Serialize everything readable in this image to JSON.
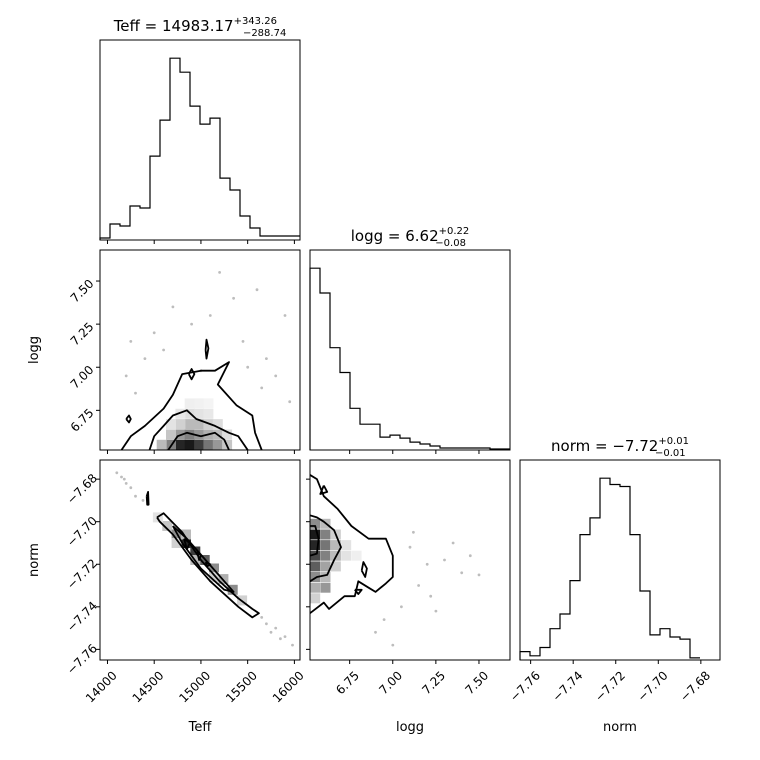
{
  "chart_data": {
    "type": "corner",
    "params": [
      {
        "name": "Teff",
        "title": {
          "label": "Teff",
          "value": "14983.17",
          "plus": "+343.26",
          "minus": "−288.74"
        },
        "range": [
          13920,
          16060
        ],
        "ticks": [
          14000,
          14500,
          15000,
          15500,
          16000
        ],
        "tick_labels": [
          "14000",
          "14500",
          "15000",
          "15500",
          "16000"
        ],
        "hist_edges_start": 13920,
        "hist_bin_width": 107,
        "hist_counts": [
          1,
          8,
          7,
          17,
          16,
          42,
          60,
          91,
          84,
          67,
          58,
          61,
          31,
          25,
          12,
          6,
          2,
          2,
          2,
          2
        ]
      },
      {
        "name": "logg",
        "title": {
          "label": "logg",
          "value": "6.62",
          "plus": "+0.22",
          "minus": "−0.08"
        },
        "range": [
          6.52,
          7.68
        ],
        "ticks": [
          6.75,
          7.0,
          7.25,
          7.5
        ],
        "tick_labels": [
          "6.75",
          "7.00",
          "7.25",
          "7.50"
        ],
        "hist_edges_start": 6.52,
        "hist_bin_width": 0.058,
        "hist_counts": [
          183,
          158,
          103,
          78,
          42,
          26,
          26,
          13,
          15,
          12,
          8,
          6,
          4,
          2,
          2,
          2,
          2,
          2,
          1,
          1
        ]
      },
      {
        "name": "norm",
        "title": {
          "label": "norm",
          "value": "−7.72",
          "plus": "+0.01",
          "minus": "−0.01"
        },
        "range": [
          -7.765,
          -7.671
        ],
        "ticks": [
          -7.76,
          -7.74,
          -7.72,
          -7.7,
          -7.68
        ],
        "tick_labels": [
          "−7.76",
          "−7.74",
          "−7.72",
          "−7.70",
          "−7.68"
        ],
        "hist_edges_start": -7.765,
        "hist_bin_width": 0.0047,
        "hist_counts": [
          4,
          2,
          6,
          15,
          22,
          38,
          60,
          68,
          87,
          84,
          83,
          60,
          33,
          12,
          15,
          11,
          10,
          1
        ]
      }
    ],
    "contours": {
      "logg_vs_Teff": [
        [
          [
            14150,
            6.52
          ],
          [
            14250,
            6.6
          ],
          [
            14400,
            6.66
          ],
          [
            14600,
            6.76
          ],
          [
            14700,
            6.84
          ],
          [
            14800,
            6.96
          ],
          [
            15000,
            6.98
          ],
          [
            15150,
            6.98
          ],
          [
            15300,
            7.03
          ],
          [
            15180,
            6.9
          ],
          [
            15380,
            6.78
          ],
          [
            15550,
            6.72
          ],
          [
            15580,
            6.62
          ],
          [
            15650,
            6.52
          ]
        ],
        [
          [
            14450,
            6.52
          ],
          [
            14500,
            6.6
          ],
          [
            14600,
            6.66
          ],
          [
            14700,
            6.72
          ],
          [
            14850,
            6.75
          ],
          [
            14950,
            6.7
          ],
          [
            15050,
            6.68
          ],
          [
            15150,
            6.66
          ],
          [
            15300,
            6.62
          ],
          [
            15400,
            6.6
          ],
          [
            15450,
            6.56
          ],
          [
            15500,
            6.52
          ]
        ],
        [
          [
            14650,
            6.52
          ],
          [
            14750,
            6.6
          ],
          [
            14850,
            6.62
          ],
          [
            15000,
            6.6
          ],
          [
            15150,
            6.62
          ],
          [
            15250,
            6.58
          ],
          [
            15300,
            6.52
          ]
        ],
        [
          [
            14870,
            6.96
          ],
          [
            14900,
            6.99
          ],
          [
            14930,
            6.96
          ],
          [
            14900,
            6.93
          ],
          [
            14870,
            6.96
          ]
        ],
        [
          [
            15050,
            7.1
          ],
          [
            15060,
            7.16
          ],
          [
            15080,
            7.11
          ],
          [
            15060,
            7.05
          ],
          [
            15050,
            7.1
          ]
        ],
        [
          [
            14200,
            6.7
          ],
          [
            14230,
            6.72
          ],
          [
            14250,
            6.7
          ],
          [
            14230,
            6.68
          ],
          [
            14200,
            6.7
          ]
        ]
      ],
      "norm_vs_Teff": [
        [
          [
            14530,
            -7.698
          ],
          [
            14600,
            -7.696
          ],
          [
            14800,
            -7.705
          ],
          [
            15000,
            -7.718
          ],
          [
            15200,
            -7.728
          ],
          [
            15400,
            -7.736
          ],
          [
            15550,
            -7.741
          ],
          [
            15620,
            -7.743
          ],
          [
            15550,
            -7.745
          ],
          [
            15400,
            -7.74
          ],
          [
            15100,
            -7.728
          ],
          [
            14900,
            -7.718
          ],
          [
            14700,
            -7.706
          ],
          [
            14560,
            -7.7
          ],
          [
            14530,
            -7.698
          ]
        ],
        [
          [
            14700,
            -7.702
          ],
          [
            14850,
            -7.708
          ],
          [
            15050,
            -7.718
          ],
          [
            15250,
            -7.728
          ],
          [
            15350,
            -7.733
          ],
          [
            15250,
            -7.732
          ],
          [
            15000,
            -7.722
          ],
          [
            14800,
            -7.71
          ],
          [
            14700,
            -7.702
          ]
        ],
        [
          [
            14820,
            -7.708
          ],
          [
            14880,
            -7.71
          ],
          [
            14850,
            -7.713
          ],
          [
            14820,
            -7.708
          ]
        ],
        [
          [
            14960,
            -7.714
          ],
          [
            15000,
            -7.716
          ],
          [
            14980,
            -7.718
          ],
          [
            14960,
            -7.714
          ]
        ],
        [
          [
            15050,
            -7.719
          ],
          [
            15100,
            -7.72
          ],
          [
            15070,
            -7.721
          ],
          [
            15050,
            -7.719
          ]
        ],
        [
          [
            14420,
            -7.688
          ],
          [
            14435,
            -7.686
          ],
          [
            14440,
            -7.692
          ],
          [
            14425,
            -7.692
          ],
          [
            14420,
            -7.688
          ]
        ]
      ],
      "norm_vs_logg": [
        [
          [
            6.52,
            -7.743
          ],
          [
            6.6,
            -7.738
          ],
          [
            6.63,
            -7.741
          ],
          [
            6.72,
            -7.735
          ],
          [
            6.78,
            -7.735
          ],
          [
            6.8,
            -7.728
          ],
          [
            6.86,
            -7.731
          ],
          [
            6.9,
            -7.733
          ],
          [
            6.96,
            -7.729
          ],
          [
            7.0,
            -7.726
          ],
          [
            7.0,
            -7.716
          ],
          [
            6.96,
            -7.708
          ],
          [
            6.86,
            -7.708
          ],
          [
            6.76,
            -7.702
          ],
          [
            6.68,
            -7.694
          ],
          [
            6.6,
            -7.688
          ],
          [
            6.56,
            -7.68
          ],
          [
            6.52,
            -7.678
          ]
        ],
        [
          [
            6.52,
            -7.728
          ],
          [
            6.56,
            -7.726
          ],
          [
            6.62,
            -7.725
          ],
          [
            6.66,
            -7.718
          ],
          [
            6.7,
            -7.712
          ],
          [
            6.66,
            -7.704
          ],
          [
            6.6,
            -7.7
          ],
          [
            6.56,
            -7.698
          ],
          [
            6.52,
            -7.697
          ]
        ],
        [
          [
            6.52,
            -7.716
          ],
          [
            6.56,
            -7.715
          ],
          [
            6.57,
            -7.708
          ],
          [
            6.55,
            -7.702
          ],
          [
            6.52,
            -7.702
          ]
        ],
        [
          [
            6.6,
            -7.683
          ],
          [
            6.62,
            -7.686
          ],
          [
            6.58,
            -7.687
          ],
          [
            6.6,
            -7.683
          ]
        ],
        [
          [
            6.82,
            -7.723
          ],
          [
            6.84,
            -7.726
          ],
          [
            6.85,
            -7.722
          ],
          [
            6.83,
            -7.719
          ],
          [
            6.82,
            -7.723
          ]
        ],
        [
          [
            6.78,
            -7.732
          ],
          [
            6.82,
            -7.732
          ],
          [
            6.8,
            -7.734
          ],
          [
            6.78,
            -7.732
          ]
        ]
      ]
    },
    "density_2d": {
      "logg_vs_Teff": [
        {
          "x": 14780,
          "y": 6.55,
          "w": 0.95
        },
        {
          "x": 14880,
          "y": 6.55,
          "w": 1.0
        },
        {
          "x": 14980,
          "y": 6.55,
          "w": 0.85
        },
        {
          "x": 15080,
          "y": 6.55,
          "w": 0.6
        },
        {
          "x": 15180,
          "y": 6.55,
          "w": 0.45
        },
        {
          "x": 14680,
          "y": 6.55,
          "w": 0.55
        },
        {
          "x": 14580,
          "y": 6.55,
          "w": 0.3
        },
        {
          "x": 15280,
          "y": 6.55,
          "w": 0.25
        },
        {
          "x": 14780,
          "y": 6.61,
          "w": 0.45
        },
        {
          "x": 14880,
          "y": 6.61,
          "w": 0.55
        },
        {
          "x": 14980,
          "y": 6.61,
          "w": 0.45
        },
        {
          "x": 15080,
          "y": 6.61,
          "w": 0.35
        },
        {
          "x": 15180,
          "y": 6.61,
          "w": 0.3
        },
        {
          "x": 14680,
          "y": 6.61,
          "w": 0.25
        },
        {
          "x": 15280,
          "y": 6.61,
          "w": 0.15
        },
        {
          "x": 14880,
          "y": 6.67,
          "w": 0.3
        },
        {
          "x": 14980,
          "y": 6.67,
          "w": 0.3
        },
        {
          "x": 15080,
          "y": 6.67,
          "w": 0.2
        },
        {
          "x": 14780,
          "y": 6.67,
          "w": 0.2
        },
        {
          "x": 14680,
          "y": 6.67,
          "w": 0.12
        },
        {
          "x": 15180,
          "y": 6.67,
          "w": 0.15
        },
        {
          "x": 14880,
          "y": 6.73,
          "w": 0.15
        },
        {
          "x": 14980,
          "y": 6.73,
          "w": 0.12
        },
        {
          "x": 14780,
          "y": 6.73,
          "w": 0.1
        },
        {
          "x": 15080,
          "y": 6.73,
          "w": 0.1
        },
        {
          "x": 14880,
          "y": 6.79,
          "w": 0.07
        },
        {
          "x": 14980,
          "y": 6.79,
          "w": 0.06
        },
        {
          "x": 15080,
          "y": 6.79,
          "w": 0.05
        }
      ],
      "norm_vs_Teff": [
        {
          "x": 14640,
          "y": -7.702,
          "w": 0.25
        },
        {
          "x": 14740,
          "y": -7.706,
          "w": 0.5
        },
        {
          "x": 14840,
          "y": -7.71,
          "w": 0.95
        },
        {
          "x": 14940,
          "y": -7.714,
          "w": 0.85
        },
        {
          "x": 15040,
          "y": -7.718,
          "w": 0.7
        },
        {
          "x": 15140,
          "y": -7.722,
          "w": 0.5
        },
        {
          "x": 15240,
          "y": -7.727,
          "w": 0.35
        },
        {
          "x": 15340,
          "y": -7.732,
          "w": 0.5
        },
        {
          "x": 15440,
          "y": -7.737,
          "w": 0.2
        },
        {
          "x": 14540,
          "y": -7.698,
          "w": 0.12
        },
        {
          "x": 14740,
          "y": -7.71,
          "w": 0.2
        },
        {
          "x": 14940,
          "y": -7.718,
          "w": 0.3
        },
        {
          "x": 15140,
          "y": -7.726,
          "w": 0.2
        },
        {
          "x": 14840,
          "y": -7.706,
          "w": 0.3
        }
      ],
      "norm_vs_logg": [
        {
          "x": 6.55,
          "y": -7.706,
          "w": 1.0
        },
        {
          "x": 6.55,
          "y": -7.711,
          "w": 0.95
        },
        {
          "x": 6.55,
          "y": -7.716,
          "w": 0.8
        },
        {
          "x": 6.55,
          "y": -7.721,
          "w": 0.7
        },
        {
          "x": 6.55,
          "y": -7.726,
          "w": 0.5
        },
        {
          "x": 6.55,
          "y": -7.731,
          "w": 0.35
        },
        {
          "x": 6.55,
          "y": -7.736,
          "w": 0.2
        },
        {
          "x": 6.55,
          "y": -7.701,
          "w": 0.5
        },
        {
          "x": 6.61,
          "y": -7.706,
          "w": 0.55
        },
        {
          "x": 6.61,
          "y": -7.711,
          "w": 0.6
        },
        {
          "x": 6.61,
          "y": -7.716,
          "w": 0.55
        },
        {
          "x": 6.61,
          "y": -7.721,
          "w": 0.4
        },
        {
          "x": 6.61,
          "y": -7.726,
          "w": 0.3
        },
        {
          "x": 6.61,
          "y": -7.731,
          "w": 0.45
        },
        {
          "x": 6.61,
          "y": -7.701,
          "w": 0.3
        },
        {
          "x": 6.67,
          "y": -7.711,
          "w": 0.3
        },
        {
          "x": 6.67,
          "y": -7.716,
          "w": 0.3
        },
        {
          "x": 6.67,
          "y": -7.706,
          "w": 0.2
        },
        {
          "x": 6.67,
          "y": -7.721,
          "w": 0.2
        },
        {
          "x": 6.73,
          "y": -7.711,
          "w": 0.12
        },
        {
          "x": 6.73,
          "y": -7.716,
          "w": 0.12
        },
        {
          "x": 6.79,
          "y": -7.716,
          "w": 0.07
        }
      ]
    },
    "scatter_extra": {
      "logg_vs_Teff": [
        [
          14200,
          6.95
        ],
        [
          14400,
          7.05
        ],
        [
          15350,
          7.4
        ],
        [
          15600,
          7.45
        ],
        [
          15900,
          7.3
        ],
        [
          14500,
          7.2
        ],
        [
          15700,
          7.05
        ],
        [
          15800,
          6.95
        ],
        [
          14300,
          6.85
        ],
        [
          15450,
          7.15
        ],
        [
          15100,
          7.3
        ],
        [
          14900,
          7.25
        ],
        [
          15200,
          7.55
        ],
        [
          15000,
          6.98
        ],
        [
          15500,
          7.0
        ],
        [
          14600,
          7.1
        ],
        [
          15650,
          6.88
        ],
        [
          14700,
          7.35
        ],
        [
          15950,
          6.8
        ],
        [
          14250,
          7.15
        ]
      ],
      "norm_vs_Teff": [
        [
          14150,
          -7.679
        ],
        [
          14200,
          -7.682
        ],
        [
          14250,
          -7.684
        ],
        [
          14300,
          -7.688
        ],
        [
          14380,
          -7.69
        ],
        [
          15700,
          -7.748
        ],
        [
          15800,
          -7.75
        ],
        [
          15900,
          -7.754
        ],
        [
          15980,
          -7.758
        ],
        [
          15650,
          -7.745
        ],
        [
          14100,
          -7.677
        ],
        [
          15750,
          -7.752
        ],
        [
          14180,
          -7.68
        ],
        [
          15850,
          -7.755
        ]
      ],
      "norm_vs_logg": [
        [
          7.1,
          -7.712
        ],
        [
          7.2,
          -7.72
        ],
        [
          7.3,
          -7.718
        ],
        [
          7.4,
          -7.724
        ],
        [
          7.15,
          -7.73
        ],
        [
          7.05,
          -7.74
        ],
        [
          7.25,
          -7.742
        ],
        [
          6.95,
          -7.746
        ],
        [
          7.35,
          -7.71
        ],
        [
          6.9,
          -7.752
        ],
        [
          7.0,
          -7.758
        ],
        [
          7.45,
          -7.716
        ],
        [
          7.12,
          -7.705
        ],
        [
          7.22,
          -7.735
        ],
        [
          7.5,
          -7.725
        ]
      ]
    }
  }
}
